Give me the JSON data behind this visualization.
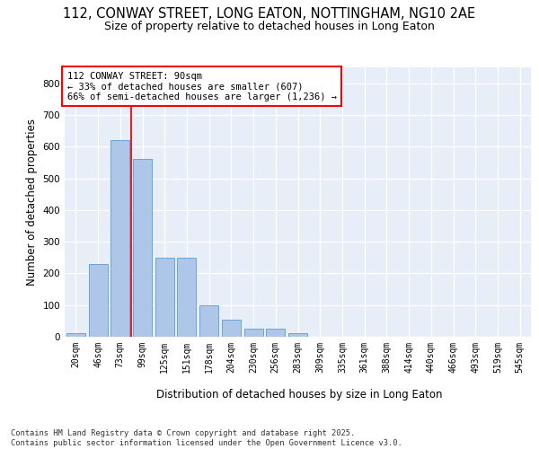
{
  "title_line1": "112, CONWAY STREET, LONG EATON, NOTTINGHAM, NG10 2AE",
  "title_line2": "Size of property relative to detached houses in Long Eaton",
  "xlabel": "Distribution of detached houses by size in Long Eaton",
  "ylabel": "Number of detached properties",
  "bar_values": [
    10,
    230,
    620,
    560,
    250,
    250,
    100,
    55,
    25,
    25,
    10,
    0,
    0,
    0,
    0,
    0,
    0,
    0,
    0,
    0,
    0
  ],
  "categories": [
    "20sqm",
    "46sqm",
    "73sqm",
    "99sqm",
    "125sqm",
    "151sqm",
    "178sqm",
    "204sqm",
    "230sqm",
    "256sqm",
    "283sqm",
    "309sqm",
    "335sqm",
    "361sqm",
    "388sqm",
    "414sqm",
    "440sqm",
    "466sqm",
    "493sqm",
    "519sqm",
    "545sqm"
  ],
  "bar_color": "#aec6e8",
  "bar_edge_color": "#5b9bd5",
  "vline_x": 2.5,
  "vline_color": "red",
  "annotation_text": "112 CONWAY STREET: 90sqm\n← 33% of detached houses are smaller (607)\n66% of semi-detached houses are larger (1,236) →",
  "ylim_max": 850,
  "yticks": [
    0,
    100,
    200,
    300,
    400,
    500,
    600,
    700,
    800
  ],
  "background_color": "#e8eef8",
  "grid_color": "#ffffff",
  "footer_line1": "Contains HM Land Registry data © Crown copyright and database right 2025.",
  "footer_line2": "Contains public sector information licensed under the Open Government Licence v3.0."
}
